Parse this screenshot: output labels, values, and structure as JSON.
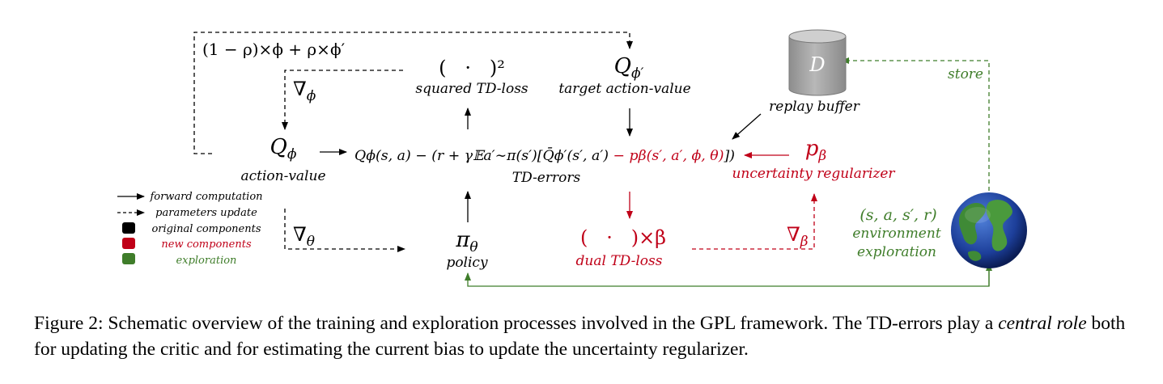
{
  "colors": {
    "black": "#000000",
    "red": "#c00018",
    "green": "#3f7d2a",
    "cylinder": "#a8a8a8"
  },
  "nodes": {
    "update_rule": "(1 − ρ)×ϕ + ρ×ϕ′",
    "square_op": "(   ·   )²",
    "square_label": "squared TD-loss",
    "target_q": "Q_ϕ′",
    "target_label": "target action-value",
    "replay_letter": "D",
    "replay_label": "replay buffer",
    "store_label": "store",
    "grad_phi": "∇ϕ",
    "q": "Qϕ",
    "q_label": "action-value",
    "td_black": "Qϕ(s, a) − (r + γ𝔼a′∼π(s′)[Q̄ϕ′(s′, a′)",
    "td_red": " − pβ(s′, a′, ϕ, θ)",
    "td_close": "])",
    "td_label": "TD-errors",
    "p": "pβ",
    "p_label": "uncertainty regularizer",
    "grad_theta": "∇θ",
    "pi": "πθ",
    "pi_label": "policy",
    "dual_op": "(   ·   )×β",
    "dual_label": "dual TD-loss",
    "grad_beta": "∇β",
    "transition": "(s, a, s′, r)",
    "env_label_1": "environment",
    "env_label_2": "exploration"
  },
  "legend": {
    "forward": "forward computation",
    "params": "parameters update",
    "original": "original components",
    "new": "new components",
    "exploration": "exploration"
  },
  "caption": {
    "part1": "Figure 2: Schematic overview of the training and exploration processes involved in the GPL framework. The TD-errors play a ",
    "emph": "central role",
    "part2": " both for updating the critic and for estimating the current bias to update the uncertainty regularizer."
  }
}
